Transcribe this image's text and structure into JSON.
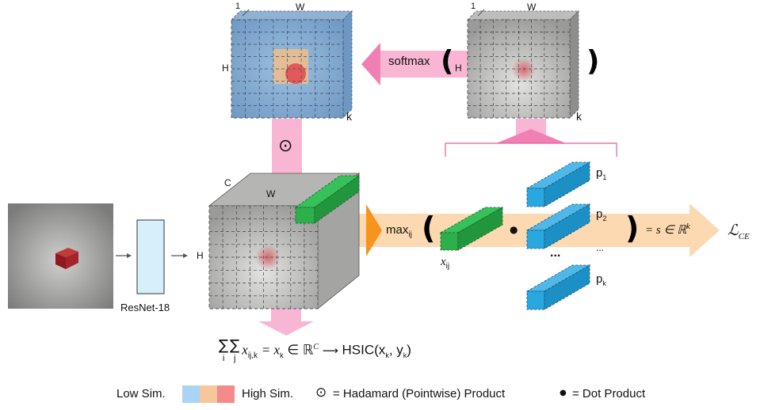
{
  "grids": {
    "left_top": {
      "one": "1",
      "w": "W",
      "h": "H",
      "k": "k"
    },
    "right_top": {
      "one": "1",
      "w": "W",
      "h": "H",
      "k": "k"
    }
  },
  "softmax": {
    "label": "softmax"
  },
  "hadamard_symbol": "⊙",
  "cube": {
    "c": "C",
    "w": "W",
    "h": "H"
  },
  "resnet": {
    "label": "ResNet-18"
  },
  "max_expr": {
    "max": "max",
    "sub": "ij",
    "xij": "x",
    "xij_sub": "ij"
  },
  "dot_symbol": "●",
  "prototypes": [
    {
      "p": "p",
      "sub": "1"
    },
    {
      "p": "p",
      "sub": "2"
    },
    {
      "p": "p",
      "sub": "k"
    }
  ],
  "ellipsis_bold": "...",
  "ellipsis_small": "...",
  "score_expr": "= s ∈ ℝ",
  "score_sup": "k",
  "loss": {
    "symbol": "ℒ",
    "sub": "CE"
  },
  "hsic_formula": {
    "sum1": "∑",
    "sum1_sub": "i",
    "sum2": "∑",
    "sum2_sub": "j",
    "x": "x",
    "x_sub": "ij,k",
    "eq": "= x",
    "eq_sub": "k",
    "in": "∈ ℝ",
    "in_sup": "C",
    "arrow": "⟶",
    "hsic": "HSIC(x",
    "hsic_sub1": "k",
    "comma": ", y",
    "hsic_sub2": "k",
    "close": ")"
  },
  "legend": {
    "low": "Low Sim.",
    "high": "High Sim.",
    "hadamard_symbol": "⊙",
    "hadamard_text": "= Hadamard (Pointwise) Product",
    "dot_symbol": "●",
    "dot_text": "= Dot Product",
    "colors": [
      "#aad4f5",
      "#f5c79a",
      "#f48a8a"
    ]
  },
  "colors": {
    "pink": "#f9b6d4",
    "orange": "#fcd9b0",
    "orange_dark": "#f7941d",
    "blue_proto": "#29a8e0",
    "green_slice": "#2db04b",
    "resnet_fill": "#d6f0fb"
  }
}
